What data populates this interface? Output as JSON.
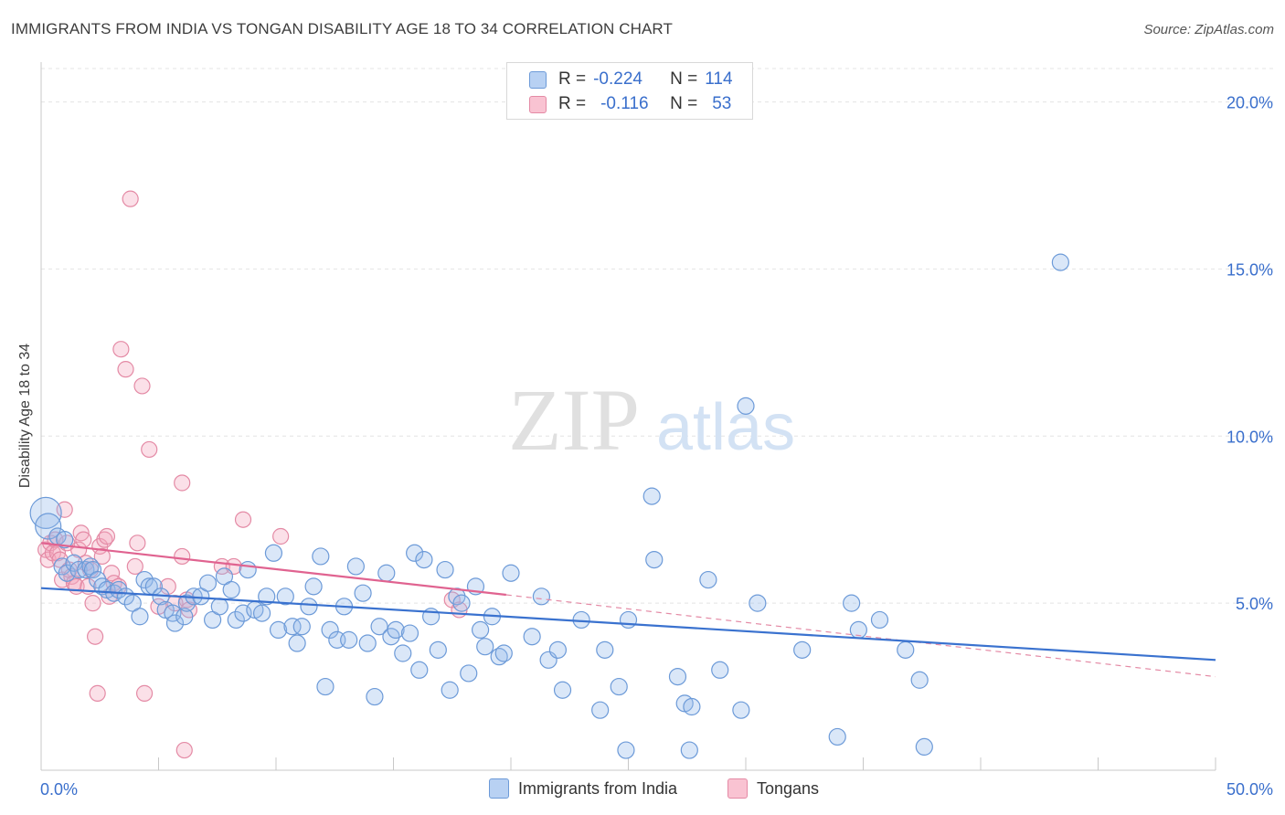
{
  "title": "IMMIGRANTS FROM INDIA VS TONGAN DISABILITY AGE 18 TO 34 CORRELATION CHART",
  "source": "Source: ZipAtlas.com",
  "watermark": {
    "zip": "ZIP",
    "atlas": "atlas"
  },
  "legend": {
    "r_label": "R =",
    "n_label": "N =",
    "rows": [
      {
        "r": "-0.224",
        "n": "114",
        "color": "#6c9ad8"
      },
      {
        "r": "-0.116",
        "n": "53",
        "color": "#e48aa5"
      }
    ]
  },
  "bottom_legend": [
    "Immigrants from India",
    "Tongans"
  ],
  "chart_data": {
    "type": "scatter",
    "title": "IMMIGRANTS FROM INDIA VS TONGAN DISABILITY AGE 18 TO 34 CORRELATION CHART",
    "ylabel": "Disability Age 18 to 34",
    "xlabel": "",
    "xlim": [
      0,
      50
    ],
    "ylim": [
      0,
      21
    ],
    "x_tick_labels": [
      "0.0%",
      "50.0%"
    ],
    "y_ticks": [
      5,
      10,
      15,
      20
    ],
    "y_tick_labels": [
      "5.0%",
      "10.0%",
      "15.0%",
      "20.0%"
    ],
    "grid": true,
    "legend_position": "top-center",
    "colors": {
      "india": "#6c9ad8",
      "india_line": "#3a72cf",
      "tongan": "#e48aa5",
      "tongan_line": "#e06390",
      "axis_text": "#3a6fcc"
    },
    "series": [
      {
        "name": "Immigrants from India",
        "r": -0.224,
        "n": 114,
        "trend": {
          "x": [
            0,
            50
          ],
          "y": [
            5.45,
            3.3
          ]
        },
        "points": [
          [
            0.2,
            7.7
          ],
          [
            0.3,
            7.3
          ],
          [
            0.7,
            7.0
          ],
          [
            1.0,
            6.9
          ],
          [
            0.9,
            6.1
          ],
          [
            1.1,
            5.9
          ],
          [
            1.4,
            6.2
          ],
          [
            1.6,
            6.0
          ],
          [
            1.9,
            6.0
          ],
          [
            2.1,
            6.1
          ],
          [
            2.2,
            6.0
          ],
          [
            2.4,
            5.7
          ],
          [
            2.6,
            5.5
          ],
          [
            2.8,
            5.4
          ],
          [
            3.1,
            5.3
          ],
          [
            3.3,
            5.4
          ],
          [
            3.6,
            5.2
          ],
          [
            3.9,
            5.0
          ],
          [
            4.2,
            4.6
          ],
          [
            4.4,
            5.7
          ],
          [
            4.6,
            5.5
          ],
          [
            4.8,
            5.5
          ],
          [
            5.1,
            5.2
          ],
          [
            5.3,
            4.8
          ],
          [
            5.6,
            4.7
          ],
          [
            5.7,
            4.4
          ],
          [
            6.1,
            4.6
          ],
          [
            6.2,
            5.0
          ],
          [
            6.5,
            5.2
          ],
          [
            6.8,
            5.2
          ],
          [
            7.1,
            5.6
          ],
          [
            7.3,
            4.5
          ],
          [
            7.6,
            4.9
          ],
          [
            7.8,
            5.8
          ],
          [
            8.1,
            5.4
          ],
          [
            8.3,
            4.5
          ],
          [
            8.6,
            4.7
          ],
          [
            8.8,
            6.0
          ],
          [
            9.1,
            4.8
          ],
          [
            9.4,
            4.7
          ],
          [
            9.6,
            5.2
          ],
          [
            9.9,
            6.5
          ],
          [
            10.1,
            4.2
          ],
          [
            10.4,
            5.2
          ],
          [
            10.7,
            4.3
          ],
          [
            10.9,
            3.8
          ],
          [
            11.1,
            4.3
          ],
          [
            11.4,
            4.9
          ],
          [
            11.6,
            5.5
          ],
          [
            11.9,
            6.4
          ],
          [
            12.1,
            2.5
          ],
          [
            12.3,
            4.2
          ],
          [
            12.6,
            3.9
          ],
          [
            12.9,
            4.9
          ],
          [
            13.1,
            3.9
          ],
          [
            13.4,
            6.1
          ],
          [
            13.7,
            5.3
          ],
          [
            13.9,
            3.8
          ],
          [
            14.2,
            2.2
          ],
          [
            14.4,
            4.3
          ],
          [
            14.7,
            5.9
          ],
          [
            14.9,
            4.0
          ],
          [
            15.1,
            4.2
          ],
          [
            15.4,
            3.5
          ],
          [
            15.7,
            4.1
          ],
          [
            15.9,
            6.5
          ],
          [
            16.1,
            3.0
          ],
          [
            16.3,
            6.3
          ],
          [
            16.6,
            4.6
          ],
          [
            16.9,
            3.6
          ],
          [
            17.2,
            6.0
          ],
          [
            17.4,
            2.4
          ],
          [
            17.7,
            5.2
          ],
          [
            17.9,
            5.0
          ],
          [
            18.2,
            2.9
          ],
          [
            18.5,
            5.5
          ],
          [
            18.7,
            4.2
          ],
          [
            18.9,
            3.7
          ],
          [
            19.2,
            4.6
          ],
          [
            19.5,
            3.4
          ],
          [
            19.7,
            3.5
          ],
          [
            20.0,
            5.9
          ],
          [
            20.9,
            4.0
          ],
          [
            21.3,
            5.2
          ],
          [
            21.6,
            3.3
          ],
          [
            22.0,
            3.6
          ],
          [
            22.2,
            2.4
          ],
          [
            23.0,
            4.5
          ],
          [
            23.8,
            1.8
          ],
          [
            24.0,
            3.6
          ],
          [
            24.6,
            2.5
          ],
          [
            25.0,
            4.5
          ],
          [
            26.0,
            8.2
          ],
          [
            26.1,
            6.3
          ],
          [
            27.1,
            2.8
          ],
          [
            27.4,
            2.0
          ],
          [
            27.7,
            1.9
          ],
          [
            24.9,
            0.6
          ],
          [
            27.6,
            0.6
          ],
          [
            28.4,
            5.7
          ],
          [
            28.9,
            3.0
          ],
          [
            29.8,
            1.8
          ],
          [
            30.0,
            10.9
          ],
          [
            30.5,
            5.0
          ],
          [
            32.4,
            3.6
          ],
          [
            33.9,
            1.0
          ],
          [
            34.5,
            5.0
          ],
          [
            34.8,
            4.2
          ],
          [
            35.7,
            4.5
          ],
          [
            36.8,
            3.6
          ],
          [
            37.4,
            2.7
          ],
          [
            37.6,
            0.7
          ],
          [
            43.4,
            15.2
          ]
        ]
      },
      {
        "name": "Tongans",
        "r": -0.116,
        "n": 53,
        "trend": {
          "x": [
            0,
            19.8
          ],
          "y": [
            6.8,
            5.25
          ]
        },
        "trend_extension": {
          "x": [
            19.8,
            50
          ],
          "y": [
            5.25,
            2.8
          ]
        },
        "points": [
          [
            0.2,
            6.6
          ],
          [
            0.3,
            6.3
          ],
          [
            0.4,
            6.8
          ],
          [
            0.5,
            6.5
          ],
          [
            0.6,
            6.9
          ],
          [
            0.7,
            6.5
          ],
          [
            0.8,
            6.3
          ],
          [
            0.9,
            5.7
          ],
          [
            1.0,
            7.8
          ],
          [
            1.1,
            6.8
          ],
          [
            1.2,
            6.0
          ],
          [
            1.3,
            5.8
          ],
          [
            1.4,
            5.6
          ],
          [
            1.5,
            5.5
          ],
          [
            1.6,
            6.6
          ],
          [
            1.7,
            7.1
          ],
          [
            1.8,
            6.9
          ],
          [
            1.9,
            6.2
          ],
          [
            2.0,
            5.5
          ],
          [
            2.1,
            6.0
          ],
          [
            2.2,
            5.0
          ],
          [
            2.3,
            4.0
          ],
          [
            2.4,
            2.3
          ],
          [
            2.5,
            6.7
          ],
          [
            2.6,
            6.4
          ],
          [
            2.7,
            6.9
          ],
          [
            2.8,
            7.0
          ],
          [
            2.9,
            5.2
          ],
          [
            3.0,
            5.9
          ],
          [
            3.1,
            5.6
          ],
          [
            3.3,
            5.5
          ],
          [
            3.4,
            12.6
          ],
          [
            3.6,
            12.0
          ],
          [
            3.8,
            17.1
          ],
          [
            4.0,
            6.1
          ],
          [
            4.1,
            6.8
          ],
          [
            4.3,
            11.5
          ],
          [
            4.6,
            9.6
          ],
          [
            5.0,
            4.9
          ],
          [
            5.4,
            5.5
          ],
          [
            5.7,
            5.0
          ],
          [
            6.0,
            6.4
          ],
          [
            6.2,
            5.1
          ],
          [
            6.3,
            4.8
          ],
          [
            4.4,
            2.3
          ],
          [
            6.0,
            8.6
          ],
          [
            6.1,
            0.6
          ],
          [
            7.7,
            6.1
          ],
          [
            8.2,
            6.1
          ],
          [
            8.6,
            7.5
          ],
          [
            10.2,
            7.0
          ],
          [
            17.5,
            5.1
          ],
          [
            17.8,
            4.8
          ]
        ]
      }
    ]
  }
}
